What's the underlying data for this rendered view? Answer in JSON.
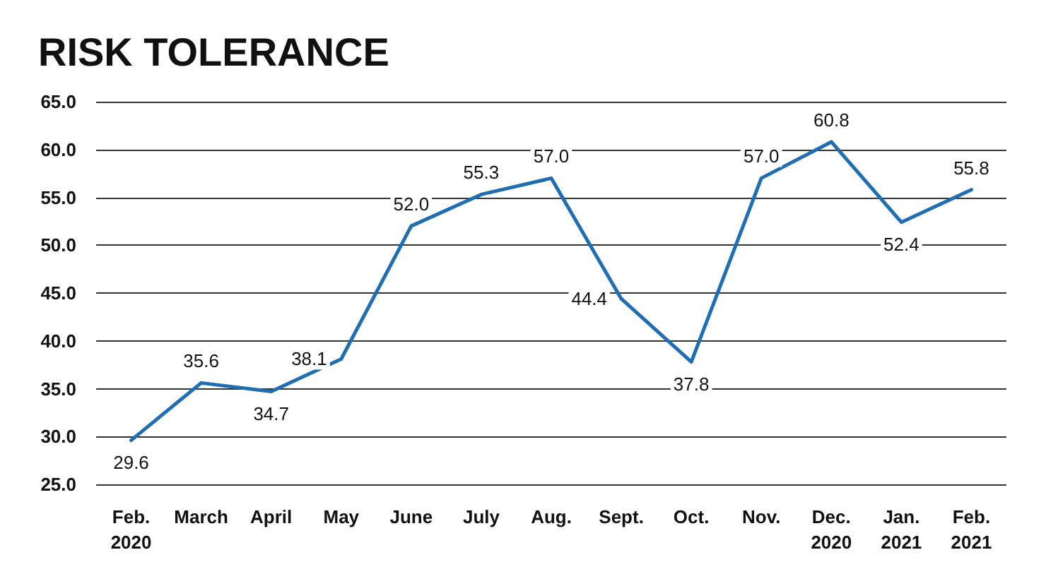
{
  "chart_data": {
    "type": "line",
    "title": "RISK TOLERANCE",
    "categories": [
      "Feb.\n2020",
      "March",
      "April",
      "May",
      "June",
      "July",
      "Aug.",
      "Sept.",
      "Oct.",
      "Nov.",
      "Dec.\n2020",
      "Jan.\n2021",
      "Feb.\n2021"
    ],
    "series": [
      {
        "color": "#1f6db3",
        "values": [
          29.6,
          35.6,
          34.7,
          38.1,
          52.0,
          55.3,
          57.0,
          44.4,
          37.8,
          57.0,
          60.8,
          52.4,
          55.8
        ],
        "value_labels": [
          "29.6",
          "35.6",
          "34.7",
          "38.1",
          "52.0",
          "55.3",
          "57.0",
          "44.4",
          "37.8",
          "57.0",
          "60.8",
          "52.4",
          "55.8"
        ]
      }
    ],
    "ylim": [
      25,
      65
    ],
    "yticks": [
      {
        "value": 25,
        "label": "25.0"
      },
      {
        "value": 30,
        "label": "30.0"
      },
      {
        "value": 35,
        "label": "35.0"
      },
      {
        "value": 40,
        "label": "40.0"
      },
      {
        "value": 45,
        "label": "45.0"
      },
      {
        "value": 50,
        "label": "50.0"
      },
      {
        "value": 55,
        "label": "55.0"
      },
      {
        "value": 60,
        "label": "60.0"
      },
      {
        "value": 65,
        "label": "65.0"
      }
    ],
    "grid": "y",
    "marker": "none",
    "line_style": "solid"
  }
}
